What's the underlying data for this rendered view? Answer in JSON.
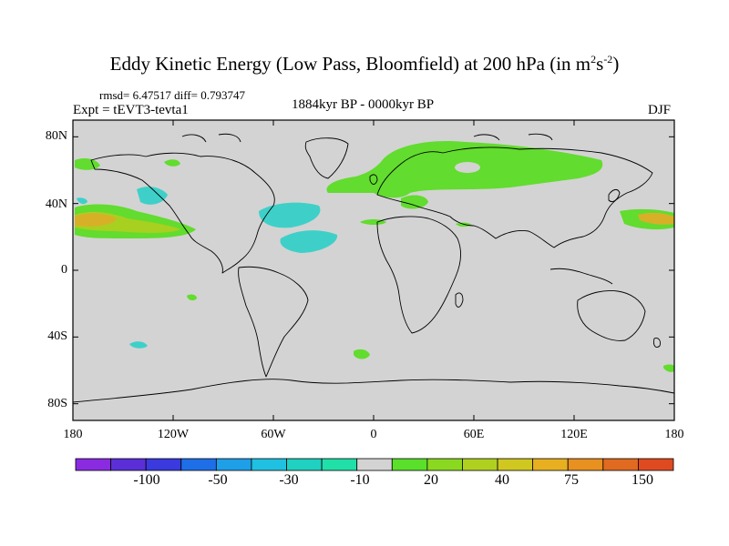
{
  "title": {
    "main": "Eddy Kinetic Energy (Low Pass, Bloomfield) at 200 hPa (in m",
    "exp1": "2",
    "mid": "s",
    "exp2": "-2",
    "close": ")"
  },
  "stats": {
    "rmsd_line": "rmsd= 6.47517 diff= 0.793747"
  },
  "experiment": "Expt = tEVT3-tevta1",
  "period": "1884kyr BP - 0000kyr BP",
  "season": "DJF",
  "map": {
    "lat_labels": [
      "80N",
      "40N",
      "0",
      "40S",
      "80S"
    ],
    "lon_labels": [
      "180",
      "120W",
      "60W",
      "0",
      "60E",
      "120E",
      "180"
    ],
    "lat_values": [
      80,
      40,
      0,
      -40,
      -80
    ],
    "lon_values": [
      -180,
      -120,
      -60,
      0,
      60,
      120,
      180
    ],
    "background_color": "#d3d3d3"
  },
  "colorbar": {
    "labels": [
      "-100",
      "-50",
      "-30",
      "-10",
      "20",
      "40",
      "75",
      "150"
    ],
    "colors": [
      "#8a2be2",
      "#5b2fd8",
      "#3a3adf",
      "#1e6ee8",
      "#1e9fe8",
      "#20c0e0",
      "#20d0c0",
      "#20e0a8",
      "#d3d3d3",
      "#5ae02a",
      "#8ad820",
      "#b0d020",
      "#d0c820",
      "#e8b020",
      "#e89020",
      "#e06a20",
      "#e04a20"
    ]
  }
}
